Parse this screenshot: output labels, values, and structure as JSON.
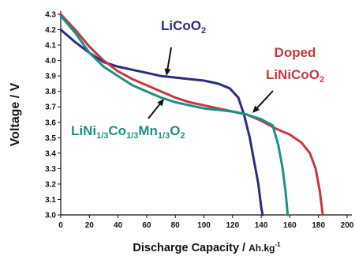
{
  "chart_data": {
    "type": "line",
    "xlabel": "Discharge Capacity",
    "xunit": "Ah.kg",
    "xunit_sup": "-1",
    "xunit_sep": "/",
    "ylabel": "Voltage / V",
    "xlim": [
      0,
      200
    ],
    "ylim": [
      3.0,
      4.3
    ],
    "xticks": [
      0,
      20,
      40,
      60,
      80,
      100,
      120,
      140,
      160,
      180,
      200
    ],
    "yticks": [
      3.0,
      3.1,
      3.2,
      3.3,
      3.4,
      3.5,
      3.6,
      3.7,
      3.8,
      3.9,
      4.0,
      4.1,
      4.2,
      4.3
    ],
    "grid": false,
    "series": [
      {
        "color": "#2b2b82",
        "points": [
          [
            0,
            4.2
          ],
          [
            10,
            4.12
          ],
          [
            20,
            4.05
          ],
          [
            30,
            3.99
          ],
          [
            40,
            3.96
          ],
          [
            50,
            3.94
          ],
          [
            60,
            3.92
          ],
          [
            70,
            3.9
          ],
          [
            80,
            3.89
          ],
          [
            90,
            3.88
          ],
          [
            100,
            3.87
          ],
          [
            110,
            3.85
          ],
          [
            118,
            3.82
          ],
          [
            124,
            3.76
          ],
          [
            128,
            3.65
          ],
          [
            132,
            3.5
          ],
          [
            135,
            3.35
          ],
          [
            138,
            3.2
          ],
          [
            140,
            3.05
          ],
          [
            141,
            3.0
          ]
        ]
      },
      {
        "color": "#c23a40",
        "points": [
          [
            0,
            4.3
          ],
          [
            10,
            4.2
          ],
          [
            20,
            4.09
          ],
          [
            30,
            4.0
          ],
          [
            40,
            3.93
          ],
          [
            50,
            3.88
          ],
          [
            60,
            3.84
          ],
          [
            70,
            3.8
          ],
          [
            80,
            3.76
          ],
          [
            90,
            3.73
          ],
          [
            100,
            3.71
          ],
          [
            110,
            3.69
          ],
          [
            120,
            3.67
          ],
          [
            130,
            3.65
          ],
          [
            140,
            3.61
          ],
          [
            150,
            3.56
          ],
          [
            160,
            3.52
          ],
          [
            168,
            3.47
          ],
          [
            174,
            3.4
          ],
          [
            178,
            3.3
          ],
          [
            181,
            3.15
          ],
          [
            183,
            3.0
          ]
        ]
      },
      {
        "color": "#1e8e86",
        "points": [
          [
            0,
            4.29
          ],
          [
            10,
            4.18
          ],
          [
            20,
            4.05
          ],
          [
            30,
            3.96
          ],
          [
            40,
            3.9
          ],
          [
            50,
            3.84
          ],
          [
            60,
            3.8
          ],
          [
            70,
            3.76
          ],
          [
            80,
            3.73
          ],
          [
            90,
            3.71
          ],
          [
            100,
            3.69
          ],
          [
            110,
            3.68
          ],
          [
            120,
            3.67
          ],
          [
            130,
            3.65
          ],
          [
            140,
            3.62
          ],
          [
            148,
            3.58
          ],
          [
            152,
            3.45
          ],
          [
            155,
            3.3
          ],
          [
            157,
            3.15
          ],
          [
            158,
            3.05
          ],
          [
            158.5,
            3.0
          ]
        ]
      }
    ],
    "annotations": [
      {
        "id": "licoo2",
        "color": "#2b2b82",
        "parts": [
          [
            "LiCoO",
            "n"
          ],
          [
            "2",
            "sub"
          ]
        ]
      },
      {
        "id": "doped-line1",
        "color": "#c23a40",
        "parts": [
          [
            "Doped",
            "n"
          ]
        ]
      },
      {
        "id": "doped-line2",
        "color": "#c23a40",
        "parts": [
          [
            "LiNiCoO",
            "n"
          ],
          [
            "2",
            "sub"
          ]
        ]
      },
      {
        "id": "nmc",
        "color": "#1e8e86",
        "parts": [
          [
            "LiNi",
            "n"
          ],
          [
            "1/3",
            "sub"
          ],
          [
            "Co",
            "n"
          ],
          [
            "1/3",
            "sub"
          ],
          [
            "Mn",
            "n"
          ],
          [
            "1/3",
            "sub"
          ],
          [
            "O",
            "n"
          ],
          [
            "2",
            "sub"
          ]
        ]
      }
    ]
  }
}
